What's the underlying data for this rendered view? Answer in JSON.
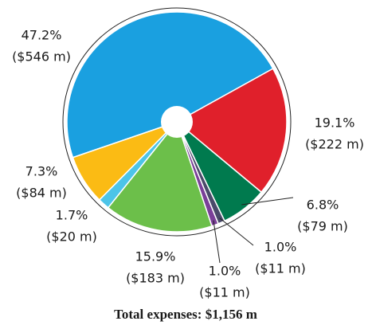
{
  "chart_data": {
    "type": "pie",
    "title": "Total expenses: $1,156 m",
    "categories": [
      null,
      null,
      null,
      null,
      null,
      null,
      null,
      null
    ],
    "values": [
      47.2,
      19.1,
      6.8,
      1.0,
      1.0,
      15.9,
      1.7,
      7.3
    ],
    "value_labels": [
      "47.2%",
      "19.1%",
      "6.8%",
      "1.0%",
      "1.0%",
      "15.9%",
      "1.7%",
      "7.3%"
    ],
    "amounts": [
      546,
      222,
      79,
      11,
      11,
      183,
      20,
      84
    ],
    "amount_labels": [
      "($546 m)",
      "($222 m)",
      "($79 m)",
      "($11 m)",
      "($11 m)",
      "($183 m)",
      "($20 m)",
      "($84 m)"
    ],
    "colors": [
      "#1aa0e0",
      "#e0202b",
      "#007a4e",
      "#4a4a6a",
      "#7a3f98",
      "#6cbf4a",
      "#4cc4e8",
      "#fbbb14"
    ]
  }
}
